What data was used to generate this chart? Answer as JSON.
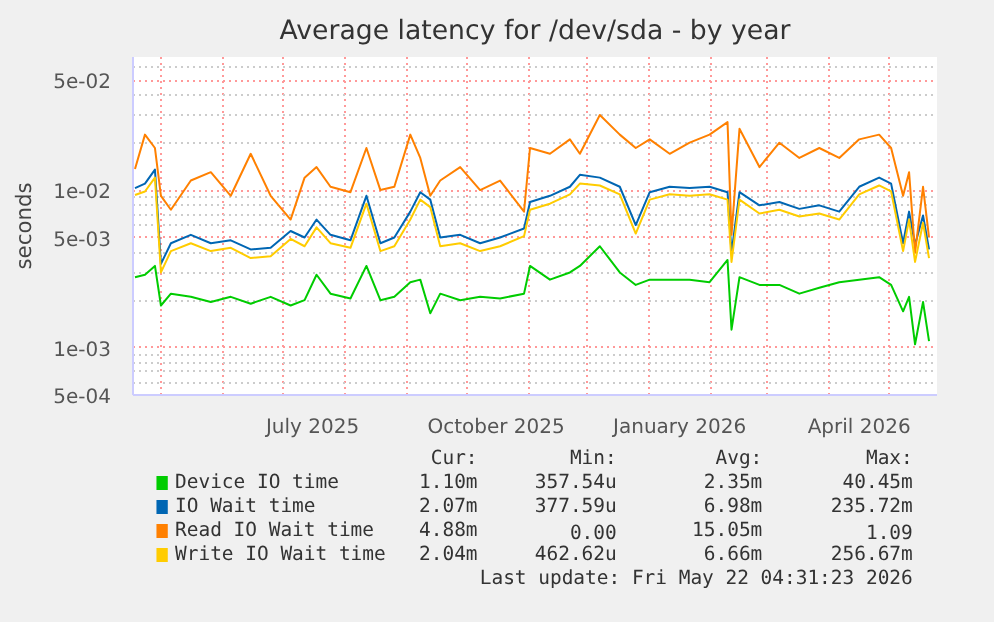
{
  "chart_data": {
    "type": "line",
    "title": "Average latency for /dev/sda - by year",
    "ylabel": "seconds",
    "log": "y",
    "grid": true,
    "legend": "bottom",
    "line_style": "solid",
    "x": [
      "2025-04-18",
      "2025-04-23",
      "2025-04-28",
      "2025-05-01",
      "2025-05-06",
      "2025-05-16",
      "2025-05-26",
      "2025-06-05",
      "2025-06-15",
      "2025-06-25",
      "2025-07-05",
      "2025-07-12",
      "2025-07-18",
      "2025-07-25",
      "2025-08-04",
      "2025-08-12",
      "2025-08-19",
      "2025-08-26",
      "2025-09-03",
      "2025-09-08",
      "2025-09-13",
      "2025-09-18",
      "2025-09-28",
      "2025-10-08",
      "2025-10-18",
      "2025-10-30",
      "2025-11-02",
      "2025-11-12",
      "2025-11-22",
      "2025-11-27",
      "2025-12-07",
      "2025-12-17",
      "2025-12-25",
      "2026-01-01",
      "2026-01-11",
      "2026-01-21",
      "2026-01-31",
      "2026-02-09",
      "2026-02-11",
      "2026-02-15",
      "2026-02-25",
      "2026-03-07",
      "2026-03-17",
      "2026-03-27",
      "2026-04-06",
      "2026-04-16",
      "2026-04-26",
      "2026-05-02",
      "2026-05-08",
      "2026-05-11",
      "2026-05-14",
      "2026-05-18",
      "2026-05-21"
    ],
    "series": [
      {
        "name": "Device IO time",
        "color": "#00cc00",
        "values": [
          0.0028,
          0.0029,
          0.0033,
          0.00185,
          0.0022,
          0.0021,
          0.00195,
          0.0021,
          0.0019,
          0.0021,
          0.00185,
          0.002,
          0.0029,
          0.0022,
          0.00205,
          0.0033,
          0.002,
          0.0021,
          0.0026,
          0.0027,
          0.00165,
          0.0022,
          0.002,
          0.0021,
          0.00205,
          0.0022,
          0.0033,
          0.0027,
          0.003,
          0.0033,
          0.0044,
          0.003,
          0.0025,
          0.0027,
          0.0027,
          0.0027,
          0.0026,
          0.0036,
          0.0013,
          0.0028,
          0.0025,
          0.0025,
          0.0022,
          0.0024,
          0.0026,
          0.0027,
          0.0028,
          0.0025,
          0.0017,
          0.0021,
          0.00105,
          0.00195,
          0.0011
        ]
      },
      {
        "name": "IO Wait time",
        "color": "#0066b3",
        "values": [
          0.0103,
          0.011,
          0.0135,
          0.0034,
          0.0046,
          0.0052,
          0.0046,
          0.0048,
          0.0042,
          0.0043,
          0.0055,
          0.005,
          0.0065,
          0.0052,
          0.0048,
          0.0092,
          0.0046,
          0.005,
          0.0073,
          0.0097,
          0.0087,
          0.005,
          0.0052,
          0.0046,
          0.005,
          0.0057,
          0.0084,
          0.0092,
          0.0105,
          0.0125,
          0.012,
          0.0105,
          0.006,
          0.0097,
          0.0105,
          0.0103,
          0.0105,
          0.0097,
          0.004,
          0.0097,
          0.008,
          0.0084,
          0.0076,
          0.008,
          0.0073,
          0.0105,
          0.012,
          0.011,
          0.0046,
          0.0073,
          0.0045,
          0.0069,
          0.0042
        ]
      },
      {
        "name": "Read IO Wait time",
        "color": "#ff8000",
        "values": [
          0.0136,
          0.0225,
          0.0185,
          0.0092,
          0.0075,
          0.0115,
          0.013,
          0.0092,
          0.017,
          0.0092,
          0.0065,
          0.012,
          0.014,
          0.0105,
          0.0097,
          0.0185,
          0.01,
          0.0105,
          0.0225,
          0.016,
          0.0092,
          0.0115,
          0.014,
          0.01,
          0.0115,
          0.0073,
          0.0185,
          0.017,
          0.021,
          0.017,
          0.03,
          0.0225,
          0.0185,
          0.021,
          0.017,
          0.02,
          0.0225,
          0.027,
          0.0052,
          0.0245,
          0.014,
          0.02,
          0.016,
          0.0185,
          0.016,
          0.021,
          0.0225,
          0.0185,
          0.0092,
          0.013,
          0.004,
          0.0105,
          0.005
        ]
      },
      {
        "name": "Write IO Wait time",
        "color": "#ffcc00",
        "values": [
          0.0093,
          0.0098,
          0.012,
          0.003,
          0.0041,
          0.0046,
          0.0041,
          0.0043,
          0.0037,
          0.0038,
          0.0049,
          0.0044,
          0.0058,
          0.0046,
          0.0043,
          0.0082,
          0.0041,
          0.0044,
          0.0065,
          0.0087,
          0.0078,
          0.0044,
          0.0046,
          0.0041,
          0.0044,
          0.0051,
          0.0075,
          0.0082,
          0.0094,
          0.011,
          0.0107,
          0.0094,
          0.0053,
          0.0087,
          0.0094,
          0.0092,
          0.0094,
          0.0087,
          0.0035,
          0.0087,
          0.0071,
          0.0075,
          0.0068,
          0.0071,
          0.0065,
          0.0094,
          0.0107,
          0.0098,
          0.0041,
          0.0065,
          0.0035,
          0.0062,
          0.0037
        ]
      }
    ],
    "xlim": [
      "2025-04-17",
      "2026-05-25"
    ],
    "xticks": [
      {
        "value": "2025-05-01",
        "label": null
      },
      {
        "value": "2025-06-01",
        "label": null
      },
      {
        "value": "2025-07-01",
        "label": null
      },
      {
        "value": "2025-07-16",
        "label": "July 2025"
      },
      {
        "value": "2025-08-01",
        "label": null
      },
      {
        "value": "2025-09-01",
        "label": null
      },
      {
        "value": "2025-10-01",
        "label": null
      },
      {
        "value": "2025-10-16",
        "label": "October 2025"
      },
      {
        "value": "2025-11-01",
        "label": null
      },
      {
        "value": "2025-12-01",
        "label": null
      },
      {
        "value": "2026-01-01",
        "label": null
      },
      {
        "value": "2026-01-16",
        "label": "January 2026"
      },
      {
        "value": "2026-02-01",
        "label": null
      },
      {
        "value": "2026-03-01",
        "label": null
      },
      {
        "value": "2026-04-01",
        "label": null
      },
      {
        "value": "2026-04-16",
        "label": "April 2026"
      },
      {
        "value": "2026-05-01",
        "label": null
      }
    ],
    "ylim": [
      0.0005,
      0.07
    ],
    "yticks": [
      {
        "value": 0.0005,
        "label": "5e-04"
      },
      {
        "value": 0.001,
        "label": "1e-03"
      },
      {
        "value": 0.005,
        "label": "5e-03"
      },
      {
        "value": 0.01,
        "label": "1e-02"
      },
      {
        "value": 0.05,
        "label": "5e-02"
      }
    ],
    "annotations": [
      "Cur:",
      "Min:",
      "Avg:",
      "Max:",
      "1.10m",
      "357.54u",
      "2.35m",
      "40.45m",
      "2.07m",
      "377.59u",
      "6.98m",
      "235.72m",
      "4.88m",
      "0.00",
      "15.05m",
      "1.09",
      "2.04m",
      "462.62u",
      "6.66m",
      "256.67m",
      "Last update: Fri May 22 04:31:23 2026"
    ]
  }
}
